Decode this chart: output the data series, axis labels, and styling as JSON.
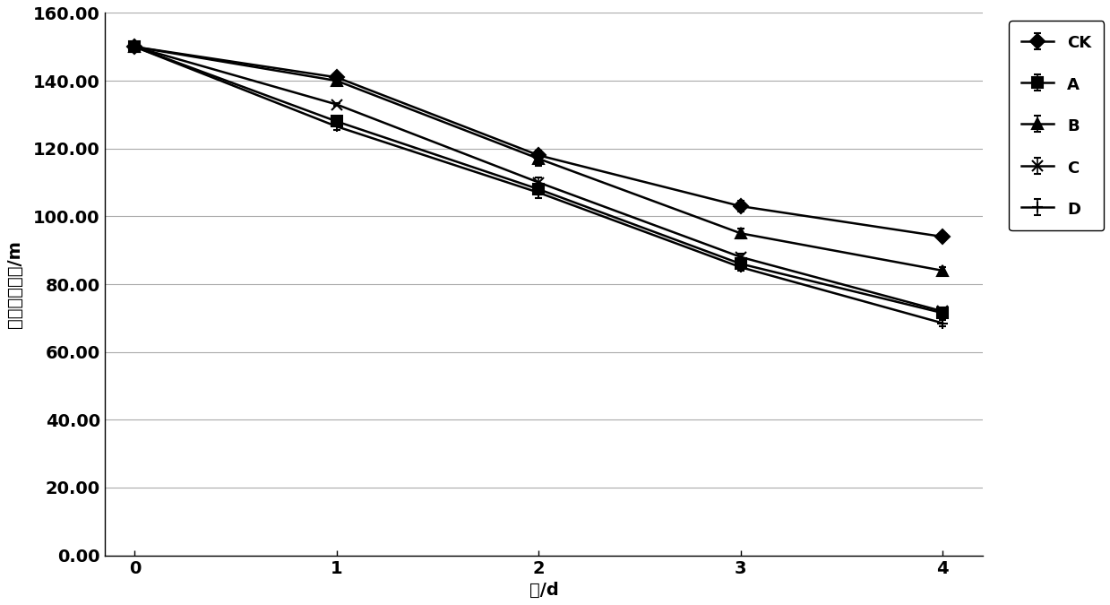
{
  "series": {
    "CK": {
      "x": [
        0,
        1,
        2,
        3,
        4
      ],
      "y": [
        150,
        141.0,
        118.0,
        103.0,
        94.0
      ],
      "yerr": [
        0,
        1.0,
        1.5,
        1.5,
        1.0
      ],
      "marker": "D",
      "label": "CK"
    },
    "A": {
      "x": [
        0,
        1,
        2,
        3,
        4
      ],
      "y": [
        150,
        128.0,
        108.0,
        86.0,
        71.5
      ],
      "yerr": [
        0,
        1.0,
        1.5,
        1.0,
        1.0
      ],
      "marker": "s",
      "label": "A"
    },
    "B": {
      "x": [
        0,
        1,
        2,
        3,
        4
      ],
      "y": [
        150,
        140.0,
        117.0,
        95.0,
        84.0
      ],
      "yerr": [
        0,
        1.0,
        2.0,
        1.5,
        1.0
      ],
      "marker": "^",
      "label": "B"
    },
    "C": {
      "x": [
        0,
        1,
        2,
        3,
        4
      ],
      "y": [
        150,
        133.0,
        110.0,
        88.0,
        72.0
      ],
      "yerr": [
        0,
        0.5,
        1.5,
        1.0,
        1.0
      ],
      "marker": "x",
      "label": "C"
    },
    "D": {
      "x": [
        0,
        1,
        2,
        3,
        4
      ],
      "y": [
        150,
        126.5,
        107.0,
        85.0,
        68.5
      ],
      "yerr": [
        0,
        1.0,
        1.5,
        1.0,
        1.0
      ],
      "marker": "+",
      "label": "D"
    }
  },
  "series_order": [
    "CK",
    "A",
    "B",
    "C",
    "D"
  ],
  "xlabel": "天/d",
  "ylabel": "废弃垃圾质量/m",
  "ylim": [
    0,
    160
  ],
  "xlim": [
    -0.15,
    4.2
  ],
  "yticks": [
    0,
    20,
    40,
    60,
    80,
    100,
    120,
    140,
    160
  ],
  "xticks": [
    0,
    1,
    2,
    3,
    4
  ],
  "ytick_labels": [
    "0.00",
    "20.00",
    "40.00",
    "60.00",
    "80.00",
    "100.00",
    "120.00",
    "140.00",
    "160.00"
  ],
  "line_color": "#000000",
  "background_color": "#ffffff",
  "grid_color": "#aaaaaa",
  "fontsize_axis": 14,
  "fontsize_tick": 14,
  "fontsize_legend": 13,
  "markersize": 8,
  "linewidth": 1.8,
  "capsize": 3
}
